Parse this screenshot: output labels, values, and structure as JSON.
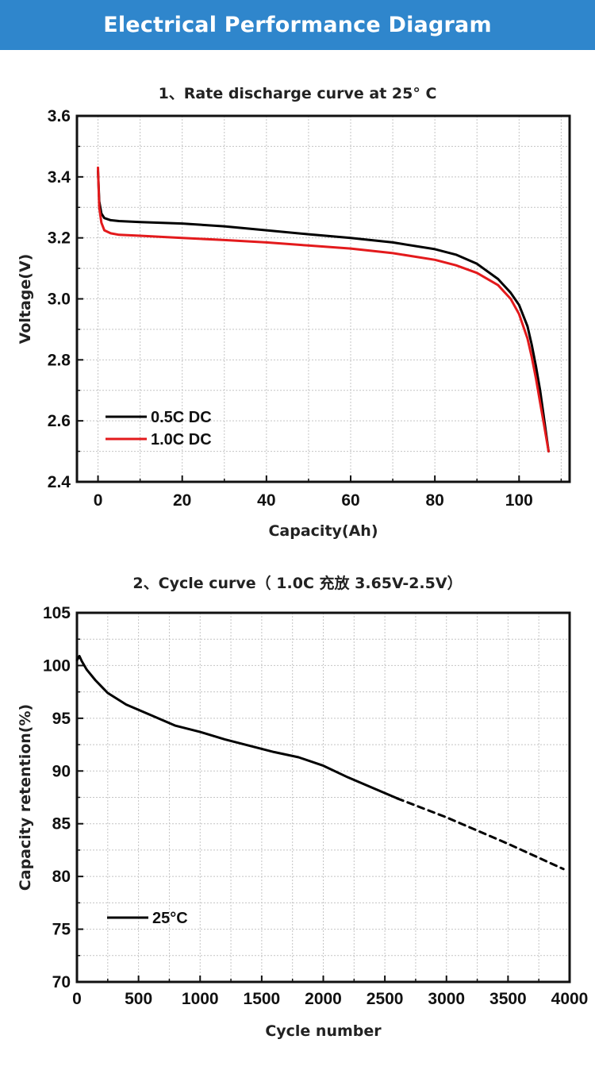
{
  "banner": {
    "title": "Electrical Performance Diagram",
    "color": "#2f86cc"
  },
  "chart_data": [
    {
      "type": "line",
      "title": "1、Rate discharge curve at 25° C",
      "xlabel": "Capacity(Ah)",
      "ylabel": "Voltage(V)",
      "xlim": [
        -5,
        112
      ],
      "ylim": [
        2.4,
        3.6
      ],
      "xticks": [
        "0",
        "20",
        "40",
        "60",
        "80",
        "100"
      ],
      "xtick_values": [
        0,
        20,
        40,
        60,
        80,
        100
      ],
      "yticks": [
        "2.4",
        "2.6",
        "2.8",
        "3.0",
        "3.2",
        "3.4",
        "3.6"
      ],
      "ytick_values": [
        2.4,
        2.6,
        2.8,
        3.0,
        3.2,
        3.4,
        3.6
      ],
      "grid": true,
      "legend_position": "bottom-left",
      "series": [
        {
          "name": "0.5C DC",
          "color": "#000000",
          "x": [
            0,
            0.3,
            0.8,
            1.5,
            3,
            5,
            10,
            20,
            30,
            40,
            50,
            60,
            70,
            80,
            85,
            90,
            95,
            98,
            100,
            102,
            103,
            104,
            105,
            106,
            107
          ],
          "y": [
            3.42,
            3.32,
            3.28,
            3.265,
            3.258,
            3.255,
            3.252,
            3.247,
            3.238,
            3.225,
            3.212,
            3.2,
            3.185,
            3.163,
            3.145,
            3.115,
            3.065,
            3.02,
            2.98,
            2.91,
            2.85,
            2.78,
            2.7,
            2.6,
            2.5
          ]
        },
        {
          "name": "1.0C DC",
          "color": "#e31a1c",
          "x": [
            0,
            0.3,
            0.8,
            1.5,
            3,
            5,
            10,
            20,
            30,
            40,
            50,
            60,
            70,
            80,
            85,
            90,
            95,
            98,
            100,
            102,
            103,
            104,
            105,
            106,
            107
          ],
          "y": [
            3.43,
            3.3,
            3.25,
            3.225,
            3.215,
            3.21,
            3.207,
            3.2,
            3.193,
            3.185,
            3.175,
            3.165,
            3.15,
            3.128,
            3.11,
            3.085,
            3.045,
            3.0,
            2.95,
            2.87,
            2.81,
            2.74,
            2.66,
            2.58,
            2.5
          ]
        }
      ]
    },
    {
      "type": "line",
      "title": "2、Cycle curve（ 1.0C 充放 3.65V-2.5V）",
      "xlabel": "Cycle number",
      "ylabel": "Capacity retention(%)",
      "xlim": [
        0,
        4000
      ],
      "ylim": [
        70,
        105
      ],
      "xticks": [
        "0",
        "500",
        "1000",
        "1500",
        "2000",
        "2500",
        "3000",
        "3500",
        "4000"
      ],
      "xtick_values": [
        0,
        500,
        1000,
        1500,
        2000,
        2500,
        3000,
        3500,
        4000
      ],
      "yticks": [
        "70",
        "75",
        "80",
        "85",
        "90",
        "95",
        "100",
        "105"
      ],
      "ytick_values": [
        70,
        75,
        80,
        85,
        90,
        95,
        100,
        105
      ],
      "grid": true,
      "legend_position": "bottom-left",
      "series": [
        {
          "name": "25°C",
          "color": "#000000",
          "x": [
            0,
            20,
            40,
            80,
            150,
            250,
            400,
            600,
            800,
            1000,
            1200,
            1400,
            1600,
            1800,
            2000,
            2200,
            2400,
            2600
          ],
          "y": [
            100.5,
            100.9,
            100.4,
            99.6,
            98.6,
            97.4,
            96.3,
            95.3,
            94.3,
            93.7,
            93.0,
            92.4,
            91.8,
            91.3,
            90.5,
            89.4,
            88.4,
            87.4
          ]
        },
        {
          "name": "",
          "color": "#000000",
          "dashed": true,
          "x": [
            2600,
            3000,
            3500,
            3950
          ],
          "y": [
            87.4,
            85.6,
            83.1,
            80.7
          ]
        }
      ]
    }
  ]
}
